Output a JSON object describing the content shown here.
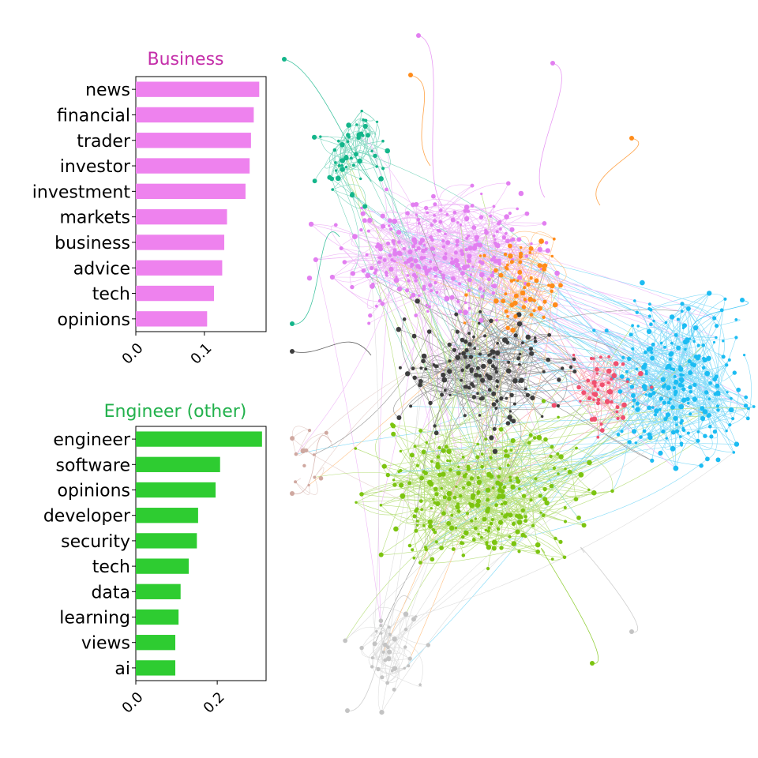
{
  "chart_data": [
    {
      "type": "bar",
      "orientation": "horizontal",
      "title": "Business",
      "color": "#ee82ee",
      "title_color": "#c42ea9",
      "categories": [
        "news",
        "financial",
        "trader",
        "investor",
        "investment",
        "markets",
        "business",
        "advice",
        "tech",
        "opinions"
      ],
      "values": [
        0.18,
        0.172,
        0.168,
        0.166,
        0.16,
        0.133,
        0.129,
        0.126,
        0.114,
        0.104
      ],
      "xlim": [
        0,
        0.19
      ],
      "xticks": [
        0.0,
        0.1
      ],
      "xtick_labels": [
        "0.0",
        "0.1"
      ]
    },
    {
      "type": "bar",
      "orientation": "horizontal",
      "title": "Engineer (other)",
      "color": "#2ecc31",
      "title_color": "#22b14c",
      "categories": [
        "engineer",
        "software",
        "opinions",
        "developer",
        "security",
        "tech",
        "data",
        "learning",
        "views",
        "ai"
      ],
      "values": [
        0.31,
        0.207,
        0.196,
        0.153,
        0.15,
        0.13,
        0.11,
        0.105,
        0.097,
        0.097
      ],
      "xlim": [
        0,
        0.32
      ],
      "xticks": [
        0.0,
        0.2
      ],
      "xtick_labels": [
        "0.0",
        "0.2"
      ]
    }
  ],
  "network": {
    "description_colors": {
      "business": "#e27ff0",
      "engineer_other": "#7cc410",
      "dark": "#3d3d3d",
      "blue": "#1cbcf2",
      "orange": "#ff8c1a",
      "teal": "#13b58a",
      "pink": "#f0506e",
      "gray": "#c3c3c3",
      "rose": "#cfa8a0"
    }
  }
}
